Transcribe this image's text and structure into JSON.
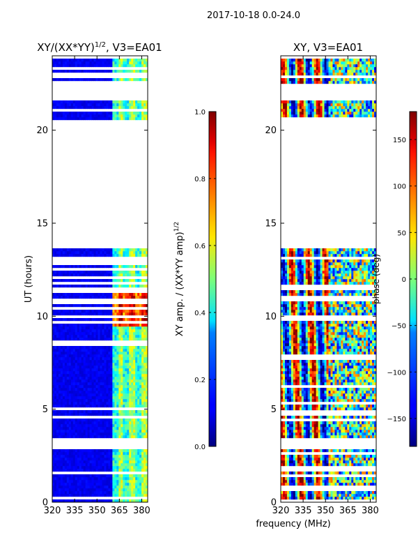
{
  "figure_title": "2017-10-18 0.0-24.0",
  "shared_xlabel": "frequency (MHz)",
  "chart_data": [
    {
      "type": "heatmap",
      "title_main": "XY/(XX*YY)",
      "title_sup": "1/2",
      "title_suffix": ", V3=EA01",
      "xlabel": "",
      "ylabel": "UT (hours)",
      "xlim": [
        320,
        384
      ],
      "ylim": [
        0,
        24
      ],
      "xticks": [
        320,
        335,
        350,
        365,
        380
      ],
      "yticks": [
        0,
        5,
        10,
        15,
        20
      ],
      "colormap": "jet",
      "colorbar": {
        "label_main": "XY amp. / (XX*YY amp)",
        "label_sup": "1/2",
        "range": [
          0.0,
          1.0
        ],
        "ticks": [
          "0.0",
          "0.2",
          "0.4",
          "0.6",
          "0.8",
          "1.0"
        ]
      },
      "data_hour_ranges": [
        [
          0.0,
          2.9
        ],
        [
          3.4,
          13.6
        ],
        [
          20.5,
          21.7
        ],
        [
          22.3,
          23.9
        ]
      ],
      "description": "normalized cross-correlation amplitude; low (~0.1) below 360 MHz, elevated (0.3-0.8) in 360-380 MHz band"
    },
    {
      "type": "heatmap",
      "title_main": "XY, V3=EA01",
      "xlabel": "frequency (MHz)",
      "ylabel": "",
      "xlim": [
        320,
        384
      ],
      "ylim": [
        0,
        24
      ],
      "xticks": [
        320,
        335,
        350,
        365,
        380
      ],
      "yticks": [
        0,
        5,
        10,
        15,
        20
      ],
      "colormap": "jet",
      "colorbar": {
        "label_main": "phase (deg)",
        "range": [
          -180,
          180
        ],
        "ticks": [
          "−150",
          "−100",
          "−50",
          "0",
          "50",
          "100",
          "150"
        ]
      },
      "data_hour_ranges": [
        [
          0.0,
          2.9
        ],
        [
          3.4,
          13.6
        ],
        [
          20.5,
          21.7
        ],
        [
          22.3,
          23.9
        ]
      ],
      "description": "cross-correlation phase; vertical stripe structure at lower frequencies, noisy phase at 350-384 MHz"
    }
  ]
}
